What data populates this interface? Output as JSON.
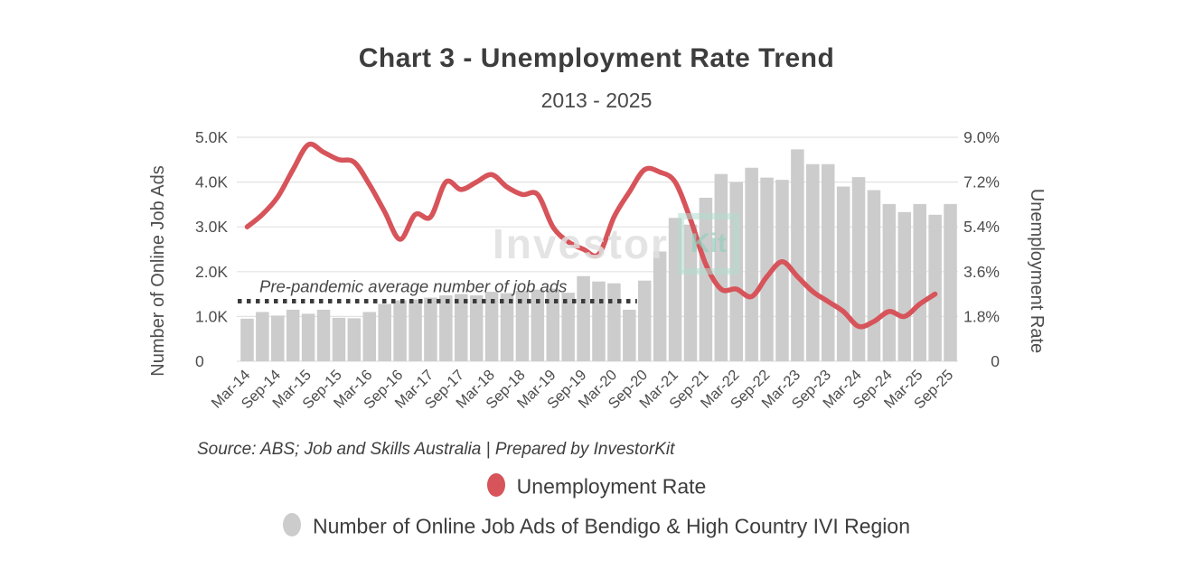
{
  "header": {
    "title": "Chart 3 - Unemployment Rate Trend",
    "subtitle": "2013 - 2025"
  },
  "chart_data": {
    "type": "combo-bar-line",
    "categories": [
      "Mar-14",
      "Jun-14",
      "Sep-14",
      "Dec-14",
      "Mar-15",
      "Jun-15",
      "Sep-15",
      "Dec-15",
      "Mar-16",
      "Jun-16",
      "Sep-16",
      "Dec-16",
      "Mar-17",
      "Jun-17",
      "Sep-17",
      "Dec-17",
      "Mar-18",
      "Jun-18",
      "Sep-18",
      "Dec-18",
      "Mar-19",
      "Jun-19",
      "Sep-19",
      "Dec-19",
      "Mar-20",
      "Jun-20",
      "Sep-20",
      "Dec-20",
      "Mar-21",
      "Jun-21",
      "Sep-21",
      "Dec-21",
      "Mar-22",
      "Jun-22",
      "Sep-22",
      "Dec-22",
      "Mar-23",
      "Jun-23",
      "Sep-23",
      "Dec-23",
      "Mar-24",
      "Jun-24",
      "Sep-24",
      "Dec-24",
      "Mar-25",
      "Jun-25",
      "Sep-25"
    ],
    "x_tick_labels": [
      "Mar-14",
      "Sep-14",
      "Mar-15",
      "Sep-15",
      "Mar-16",
      "Sep-16",
      "Mar-17",
      "Sep-17",
      "Mar-18",
      "Sep-18",
      "Mar-19",
      "Sep-19",
      "Mar-20",
      "Sep-20",
      "Mar-21",
      "Sep-21",
      "Mar-22",
      "Sep-22",
      "Mar-23",
      "Sep-23",
      "Mar-24",
      "Sep-24",
      "Mar-25",
      "Sep-25"
    ],
    "series": [
      {
        "name": "Number of Online Job Ads of Bendigo & High Country IVI Region",
        "type": "bar",
        "axis": "left",
        "unit": "K",
        "color": "#cccccc",
        "values": [
          0.95,
          1.1,
          1.02,
          1.15,
          1.06,
          1.15,
          0.97,
          0.96,
          1.1,
          1.28,
          1.36,
          1.38,
          1.42,
          1.47,
          1.5,
          1.47,
          1.55,
          1.52,
          1.57,
          1.6,
          1.62,
          1.53,
          1.9,
          1.78,
          1.74,
          1.15,
          1.8,
          2.45,
          3.2,
          3.05,
          3.65,
          4.18,
          4.0,
          4.32,
          4.1,
          4.05,
          4.73,
          4.4,
          4.4,
          3.9,
          4.11,
          3.82,
          3.51,
          3.33,
          3.51,
          3.27,
          3.51
        ]
      },
      {
        "name": "Unemployment Rate",
        "type": "line",
        "axis": "right",
        "unit": "%",
        "color": "#d6545a",
        "values": [
          5.4,
          5.9,
          6.6,
          7.7,
          8.7,
          8.4,
          8.1,
          8.0,
          7.1,
          6.0,
          4.9,
          5.9,
          5.8,
          7.2,
          6.9,
          7.2,
          7.5,
          7.0,
          6.7,
          6.7,
          5.4,
          4.8,
          4.5,
          4.3,
          5.8,
          6.8,
          7.7,
          7.6,
          7.2,
          5.7,
          3.9,
          2.9,
          2.9,
          2.6,
          3.4,
          4.0,
          3.4,
          2.8,
          2.4,
          2.0,
          1.4,
          1.6,
          2.0,
          1.8,
          2.3,
          2.7,
          null
        ]
      }
    ],
    "left_axis": {
      "label": "Number of Online Job Ads",
      "ticks": [
        "0",
        "1.0K",
        "2.0K",
        "3.0K",
        "4.0K",
        "5.0K"
      ],
      "min": 0,
      "max": 5
    },
    "right_axis": {
      "label": "Unemployment Rate",
      "ticks": [
        "0",
        "1.8%",
        "3.6%",
        "5.4%",
        "7.2%",
        "9.0%"
      ],
      "min": 0,
      "max": 9
    },
    "annotation": {
      "text": "Pre-pandemic average number of job ads",
      "value_k": 1.34,
      "end_category": "Jun-20"
    },
    "grid": true,
    "legend_position": "bottom",
    "colors": {
      "grid": "#e2e2e2",
      "axis_text": "#4d4d4d",
      "annotation_line": "#3b3b3b",
      "annotation_text": "#474747"
    }
  },
  "watermark": {
    "text": "Investor",
    "logo_text": "Kit"
  },
  "source": {
    "text": "Source: ABS; Job and Skills Australia | Prepared by InvestorKit"
  },
  "legend": [
    {
      "label": "Unemployment Rate",
      "color": "#d6545a"
    },
    {
      "label": "Number of Online Job Ads of Bendigo & High Country IVI Region",
      "color": "#cccccc"
    }
  ]
}
